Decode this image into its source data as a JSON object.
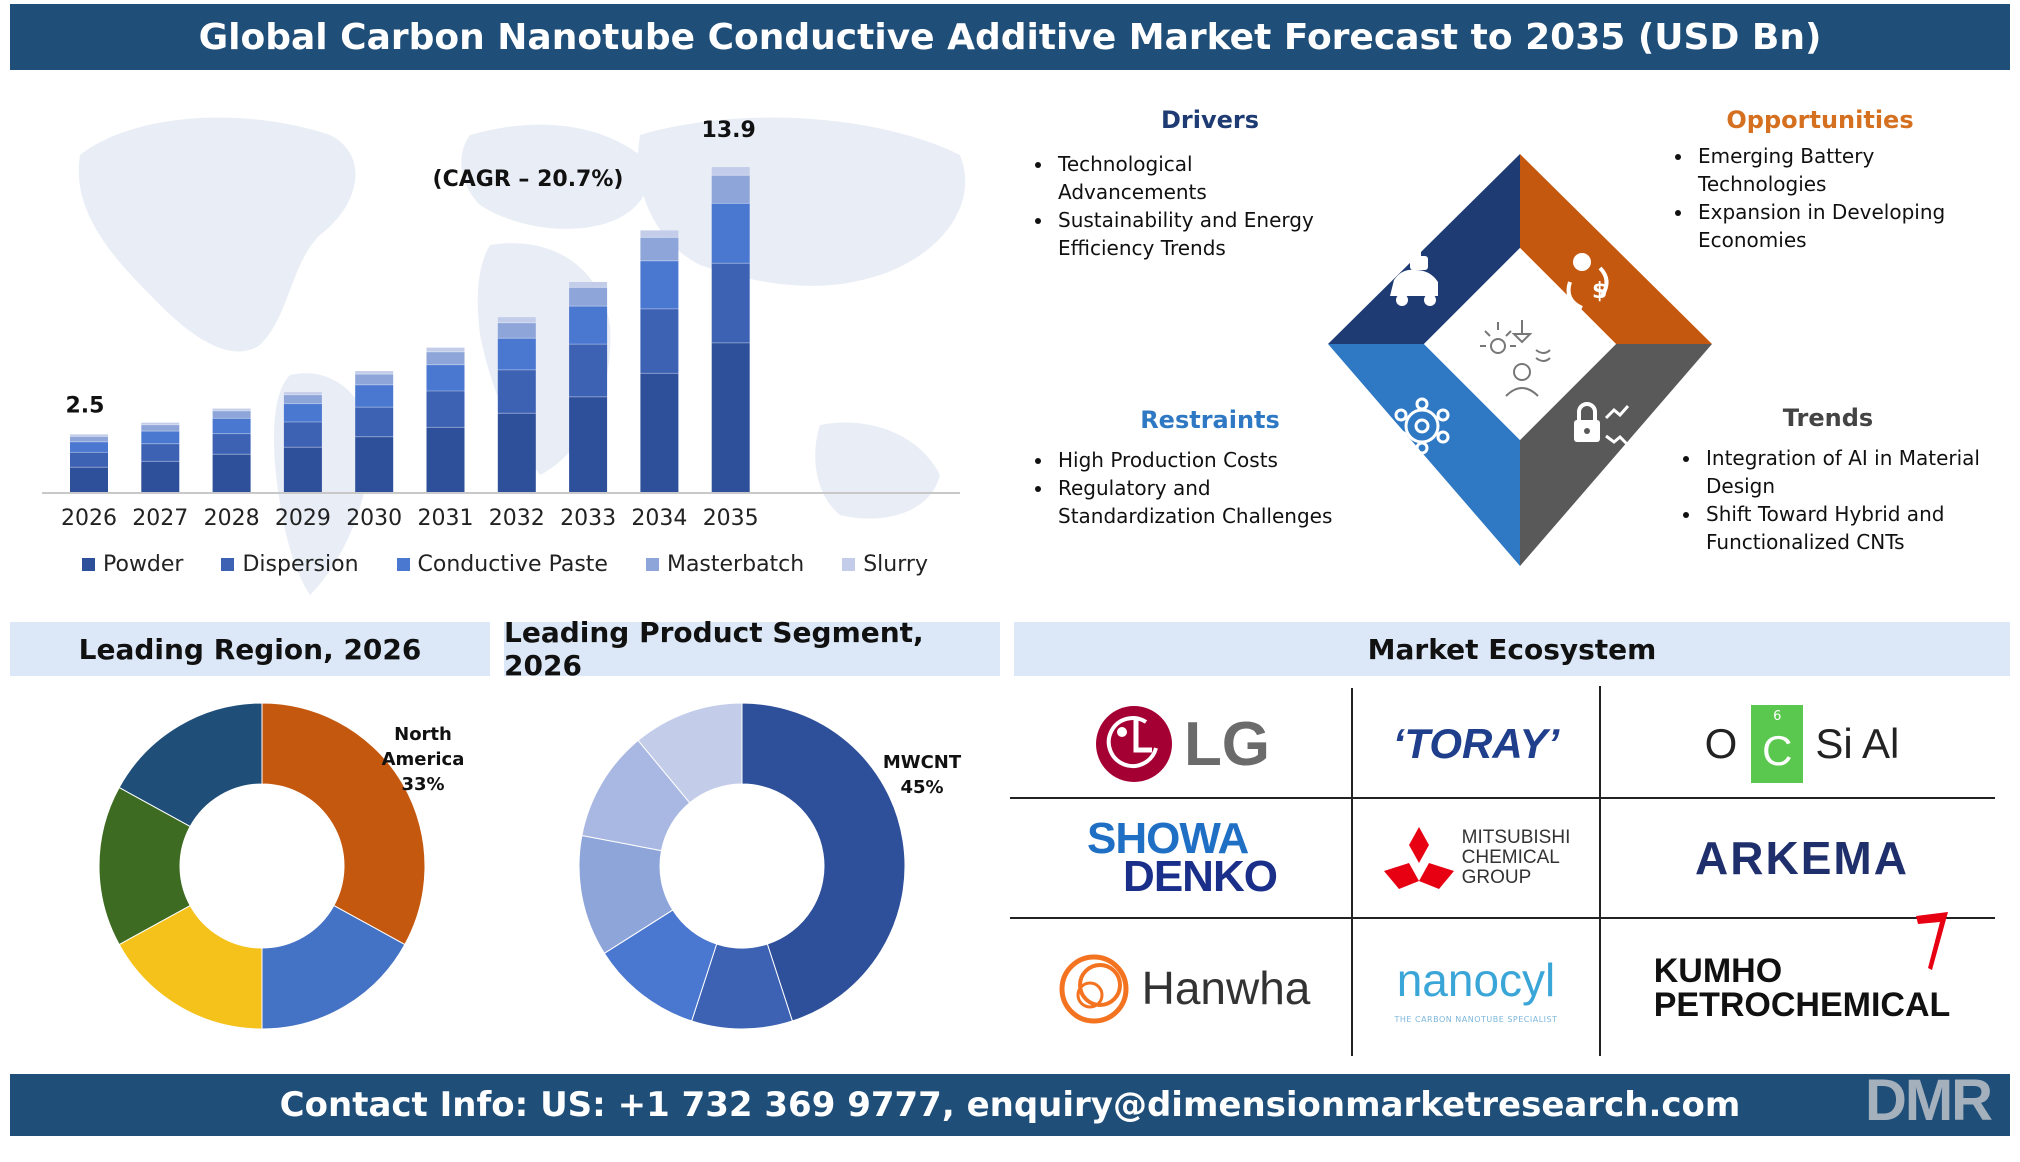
{
  "header": {
    "title": "Global Carbon Nanotube Conductive Additive Market Forecast to 2035 (USD Bn)"
  },
  "chart_data": [
    {
      "type": "bar",
      "stacked": true,
      "title": "",
      "cagr_label": "(CAGR – 20.7%)",
      "categories": [
        "2026",
        "2027",
        "2028",
        "2029",
        "2030",
        "2031",
        "2032",
        "2033",
        "2034",
        "2035"
      ],
      "totals": [
        2.5,
        3.0,
        3.6,
        4.3,
        5.2,
        6.2,
        7.5,
        9.0,
        11.2,
        13.9
      ],
      "total_labels": {
        "first": "2.5",
        "last": "13.9"
      },
      "series": [
        {
          "name": "Powder",
          "color": "#2e4f9a",
          "values": [
            1.1,
            1.35,
            1.65,
            1.95,
            2.4,
            2.8,
            3.4,
            4.1,
            5.1,
            6.4
          ]
        },
        {
          "name": "Dispersion",
          "color": "#3d62b4",
          "values": [
            0.63,
            0.75,
            0.88,
            1.08,
            1.26,
            1.55,
            1.85,
            2.25,
            2.75,
            3.4
          ]
        },
        {
          "name": "Conductive Paste",
          "color": "#4a77d0",
          "values": [
            0.45,
            0.54,
            0.65,
            0.78,
            0.95,
            1.12,
            1.35,
            1.62,
            2.05,
            2.55
          ]
        },
        {
          "name": "Masterbatch",
          "color": "#8ea5da",
          "values": [
            0.23,
            0.27,
            0.32,
            0.38,
            0.46,
            0.55,
            0.66,
            0.8,
            1.0,
            1.2
          ]
        },
        {
          "name": "Slurry",
          "color": "#c3cdea",
          "values": [
            0.09,
            0.09,
            0.1,
            0.11,
            0.13,
            0.18,
            0.24,
            0.23,
            0.3,
            0.35
          ]
        }
      ],
      "ylim": [
        0,
        14.5
      ],
      "grid": false,
      "legend": "bottom"
    },
    {
      "type": "pie",
      "donut": true,
      "title": "Leading Region, 2026",
      "slices": [
        {
          "value": 33,
          "color": "#c5580f"
        },
        {
          "value": 17,
          "color": "#4472c4"
        },
        {
          "value": 17,
          "color": "#f5c21b"
        },
        {
          "value": 16,
          "color": "#3d6b22"
        },
        {
          "value": 17,
          "color": "#1f4e79"
        }
      ],
      "callout": {
        "label_line1": "North",
        "label_line2": "America",
        "value": "33%"
      }
    },
    {
      "type": "pie",
      "donut": true,
      "title": "Leading Product Segment, 2026",
      "slices": [
        {
          "value": 45,
          "color": "#2e4f9a"
        },
        {
          "value": 10,
          "color": "#3d62b4"
        },
        {
          "value": 11,
          "color": "#4a77d0"
        },
        {
          "value": 12,
          "color": "#8ea5da"
        },
        {
          "value": 11,
          "color": "#a9b8e2"
        },
        {
          "value": 11,
          "color": "#c3cdea"
        }
      ],
      "callout": {
        "label": "MWCNT",
        "value": "45%"
      }
    }
  ],
  "quadrants": {
    "drivers": {
      "title": "Drivers",
      "items": [
        "Technological Advancements",
        "Sustainability and Energy Efficiency Trends"
      ]
    },
    "opportunities": {
      "title": "Opportunities",
      "items": [
        "Emerging Battery Technologies",
        "Expansion in Developing Economies"
      ]
    },
    "restraints": {
      "title": "Restraints",
      "items": [
        "High Production Costs",
        "Regulatory and Standardization Challenges"
      ]
    },
    "trends": {
      "title": "Trends",
      "items": [
        "Integration of AI in Material Design",
        "Shift Toward Hybrid and Functionalized CNTs"
      ]
    },
    "colors": {
      "drivers": "#1f3b73",
      "opportunities": "#c5580f",
      "restraints": "#2f78c4",
      "trends": "#595959"
    },
    "icons": {
      "drivers": "robot-car-icon",
      "opportunities": "money-cycle-icon",
      "restraints": "gear-network-icon",
      "trends": "lock-trend-icon",
      "center": "innovation-person-icon"
    }
  },
  "sections": {
    "region_title": "Leading Region, 2026",
    "segment_title": "Leading Product Segment, 2026",
    "ecosystem_title": "Market Ecosystem"
  },
  "ecosystem": {
    "lg": "LG",
    "toray": "‘TORAY’",
    "ocsial": {
      "o": "O",
      "c": "C",
      "six": "6",
      "rest": "Si Al"
    },
    "showa": {
      "line1": "SHOWA",
      "line2": "DENKO"
    },
    "mitsubishi": {
      "line1": "MITSUBISHI",
      "line2": "CHEMICAL",
      "line3": "GROUP"
    },
    "arkema": "ARKEMA",
    "hanwha": "Hanwha",
    "nanocyl": {
      "name": "nanocyl",
      "tagline": "THE CARBON NANOTUBE SPECIALIST"
    },
    "kumho": {
      "line1": "KUMHO",
      "line2": "PETROCHEMICAL"
    }
  },
  "footer": {
    "contact": "Contact Info: US: +1 732 369 9777, enquiry@dimensionmarketresearch.com",
    "logo": "DMR"
  }
}
